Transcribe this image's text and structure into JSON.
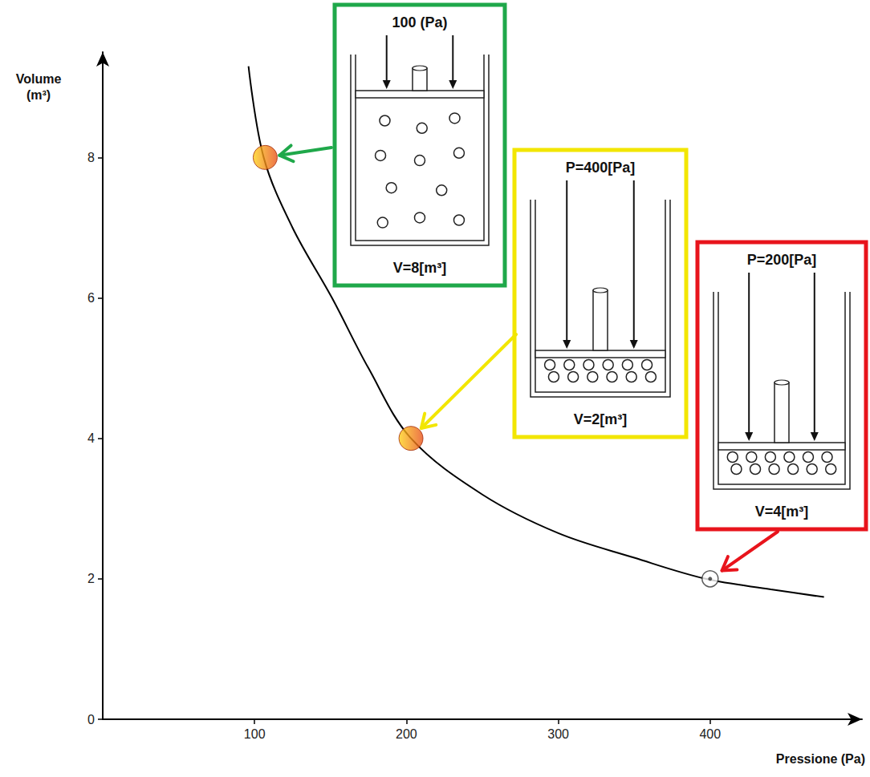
{
  "chart_data": {
    "type": "line",
    "x_label": "Pressione (Pa)",
    "y_label": "Volume (m³)",
    "xlim": [
      0,
      500
    ],
    "xticks": [
      100,
      200,
      300,
      400
    ],
    "ylim": [
      0,
      9.5
    ],
    "yticks": [
      0,
      2,
      4,
      6,
      8
    ],
    "grid": false,
    "series": [
      {
        "type": "line",
        "color": "#000000",
        "line_style": "solid",
        "x": [
          96,
          106,
          125,
          151,
          175,
          203,
          250,
          300,
          350,
          397,
          440,
          475
        ],
        "values": [
          9.3,
          8,
          7,
          6,
          5,
          4,
          3.2,
          2.65,
          2.3,
          2,
          1.85,
          1.74
        ]
      },
      {
        "type": "scatter",
        "marker": "circle",
        "color": "#e8501a",
        "x": [
          107,
          203
        ],
        "values": [
          8,
          4
        ]
      },
      {
        "type": "scatter",
        "marker": "ring",
        "color": "#333333",
        "x": [
          400
        ],
        "values": [
          2
        ]
      }
    ],
    "annotations": [
      {
        "pressure": "100 (Pa)",
        "volume": "V=8[m³]",
        "color": "#1fa84a"
      },
      {
        "pressure": "P=400[Pa]",
        "volume": "V=2[m³]",
        "color": "#f2e600"
      },
      {
        "pressure": "P=200[Pa]",
        "volume": "V=4[m³]",
        "color": "#e8141c"
      }
    ]
  }
}
